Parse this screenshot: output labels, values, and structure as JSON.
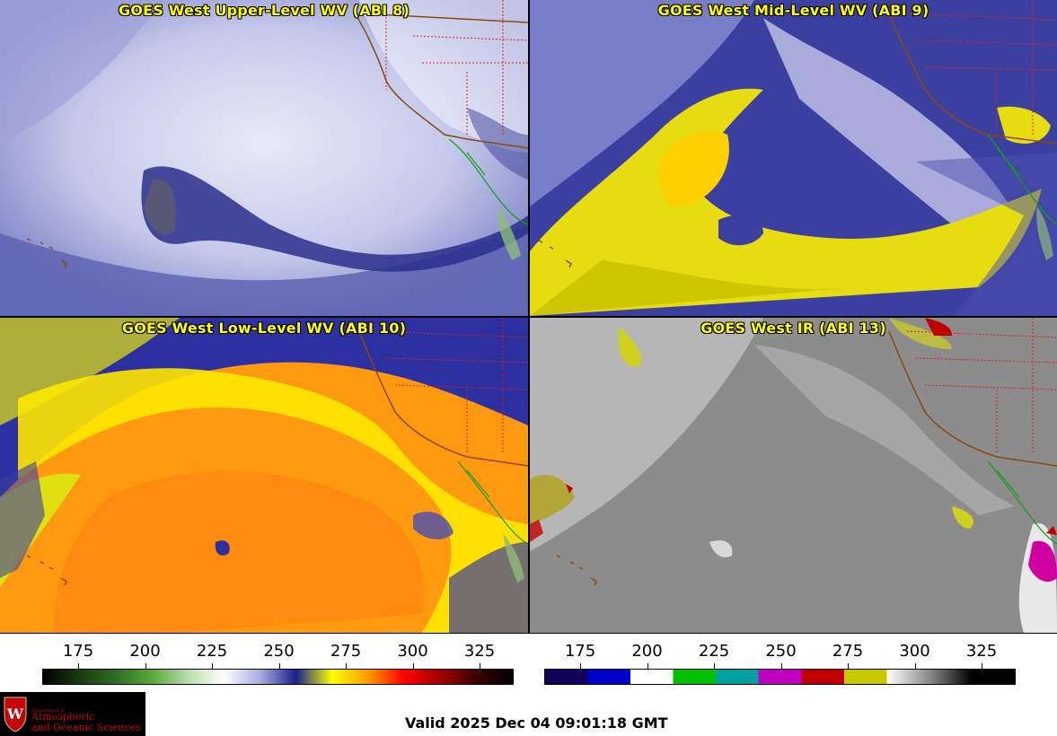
{
  "panels": [
    {
      "id": "upper",
      "title": "GOES West Upper-Level WV (ABI 8)"
    },
    {
      "id": "mid",
      "title": "GOES West Mid-Level WV (ABI 9)"
    },
    {
      "id": "low",
      "title": "GOES West Low-Level WV (ABI 10)"
    },
    {
      "id": "ir",
      "title": "GOES West IR (ABI 13)"
    }
  ],
  "colorbars": {
    "wv": {
      "ticks": [
        "175",
        "200",
        "225",
        "250",
        "275",
        "300",
        "325"
      ],
      "gradient": [
        "#000000",
        "#1a3a12",
        "#2f6b22",
        "#58a83a",
        "#b8dca8",
        "#ffffff",
        "#a8aee0",
        "#1a1f8c",
        "#ffff00",
        "#ff9a00",
        "#ff0000",
        "#a00000",
        "#3a0000",
        "#000000"
      ]
    },
    "ir": {
      "ticks": [
        "175",
        "200",
        "225",
        "250",
        "275",
        "300",
        "325"
      ],
      "segments": [
        "#10005a",
        "#0000c8",
        "#ffffff",
        "#00c000",
        "#00a0a0",
        "#c000c0",
        "#c00000",
        "#c8c800",
        "#ffffff",
        "#8a8a8a",
        "#000000"
      ]
    }
  },
  "logo": {
    "line1": "Department of",
    "line2": "Atmospheric",
    "line3": "and Oceanic Sciences"
  },
  "valid_time": "Valid 2025 Dec 04 09:01:18 GMT",
  "colors": {
    "title": "#ffff00",
    "logo_text": "#c5050c"
  }
}
